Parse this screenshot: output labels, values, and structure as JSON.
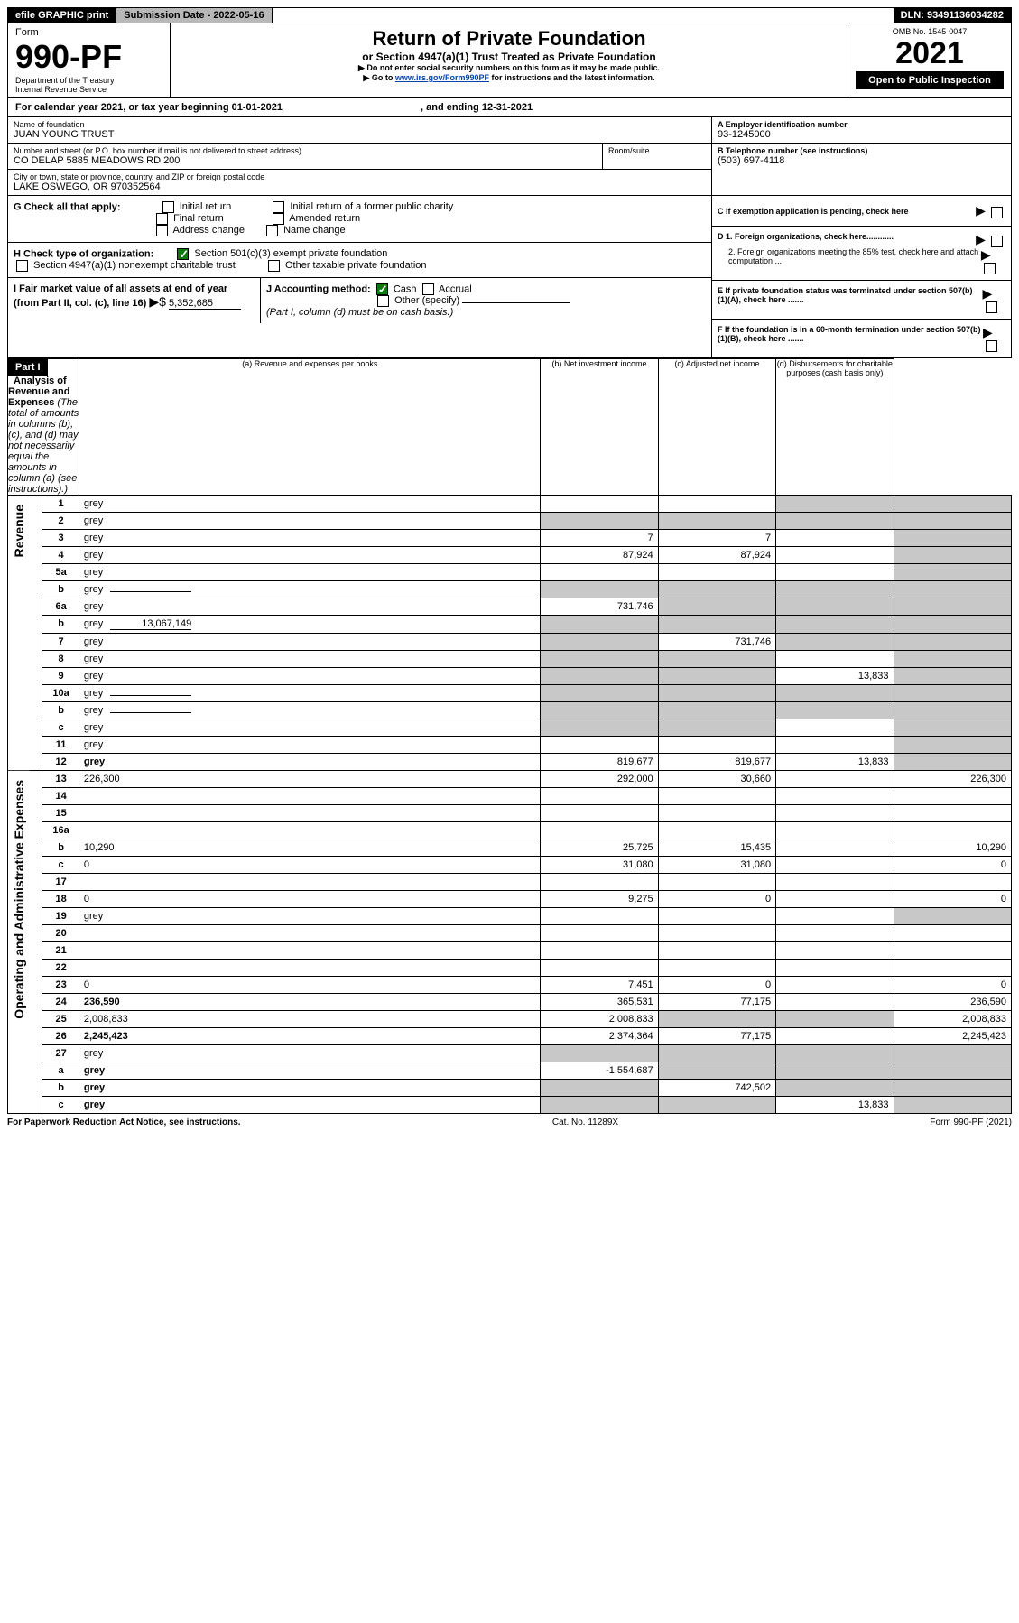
{
  "topbar": {
    "efile": "efile GRAPHIC print",
    "submission": "Submission Date - 2022-05-16",
    "dln": "DLN: 93491136034282"
  },
  "header": {
    "form_label": "Form",
    "form_num": "990-PF",
    "dept": "Department of the Treasury",
    "irs": "Internal Revenue Service",
    "title": "Return of Private Foundation",
    "subtitle": "or Section 4947(a)(1) Trust Treated as Private Foundation",
    "note1": "▶ Do not enter social security numbers on this form as it may be made public.",
    "note2_pre": "▶ Go to ",
    "note2_link": "www.irs.gov/Form990PF",
    "note2_post": " for instructions and the latest information.",
    "omb": "OMB No. 1545-0047",
    "year": "2021",
    "open": "Open to Public Inspection"
  },
  "calendar": {
    "text_pre": "For calendar year 2021, or tax year beginning ",
    "begin": "01-01-2021",
    "text_mid": " , and ending ",
    "end": "12-31-2021"
  },
  "name_block": {
    "name_label": "Name of foundation",
    "name": "JUAN YOUNG TRUST",
    "addr_label": "Number and street (or P.O. box number if mail is not delivered to street address)",
    "addr": "CO DELAP 5885 MEADOWS RD 200",
    "room_label": "Room/suite",
    "city_label": "City or town, state or province, country, and ZIP or foreign postal code",
    "city": "LAKE OSWEGO, OR  970352564"
  },
  "id_block": {
    "a_label": "A Employer identification number",
    "a_val": "93-1245000",
    "b_label": "B Telephone number (see instructions)",
    "b_val": "(503) 697-4118",
    "c_label": "C If exemption application is pending, check here",
    "d1": "D 1. Foreign organizations, check here............",
    "d2": "2. Foreign organizations meeting the 85% test, check here and attach computation ...",
    "e": "E  If private foundation status was terminated under section 507(b)(1)(A), check here .......",
    "f": "F  If the foundation is in a 60-month termination under section 507(b)(1)(B), check here .......",
    "arrow": "▶"
  },
  "g": {
    "label": "G Check all that apply:",
    "opts": [
      "Initial return",
      "Final return",
      "Address change",
      "Initial return of a former public charity",
      "Amended return",
      "Name change"
    ]
  },
  "h": {
    "label": "H Check type of organization:",
    "opt1": "Section 501(c)(3) exempt private foundation",
    "opt2": "Section 4947(a)(1) nonexempt charitable trust",
    "opt3": "Other taxable private foundation"
  },
  "i": {
    "label": "I Fair market value of all assets at end of year (from Part II, col. (c), line 16)",
    "arrow": "▶$",
    "val": "5,352,685"
  },
  "j": {
    "label": "J Accounting method:",
    "cash": "Cash",
    "accrual": "Accrual",
    "other": "Other (specify)",
    "note": "(Part I, column (d) must be on cash basis.)"
  },
  "part1": {
    "hdr": "Part I",
    "title": "Analysis of Revenue and Expenses",
    "title_note": " (The total of amounts in columns (b), (c), and (d) may not necessarily equal the amounts in column (a) (see instructions).)",
    "col_a": "(a)  Revenue and expenses per books",
    "col_b": "(b)  Net investment income",
    "col_c": "(c)  Adjusted net income",
    "col_d": "(d)  Disbursements for charitable purposes (cash basis only)"
  },
  "revenue_label": "Revenue",
  "expenses_label": "Operating and Administrative Expenses",
  "rows": [
    {
      "n": "1",
      "d": "grey",
      "a": "",
      "b": "",
      "c": "grey"
    },
    {
      "n": "2",
      "d": "grey",
      "a": "grey",
      "b": "grey",
      "c": "grey",
      "span": true
    },
    {
      "n": "3",
      "d": "grey",
      "a": "7",
      "b": "7",
      "c": ""
    },
    {
      "n": "4",
      "d": "grey",
      "a": "87,924",
      "b": "87,924",
      "c": ""
    },
    {
      "n": "5a",
      "d": "grey",
      "a": "",
      "b": "",
      "c": ""
    },
    {
      "n": "b",
      "d": "grey",
      "a": "grey",
      "b": "grey",
      "c": "grey",
      "inline": true
    },
    {
      "n": "6a",
      "d": "grey",
      "a": "731,746",
      "b": "grey",
      "c": "grey"
    },
    {
      "n": "b",
      "d": "grey",
      "a": "grey",
      "b": "grey",
      "c": "grey",
      "inline": true,
      "inlineval": "13,067,149"
    },
    {
      "n": "7",
      "d": "grey",
      "a": "grey",
      "b": "731,746",
      "c": "grey"
    },
    {
      "n": "8",
      "d": "grey",
      "a": "grey",
      "b": "grey",
      "c": ""
    },
    {
      "n": "9",
      "d": "grey",
      "a": "grey",
      "b": "grey",
      "c": "13,833"
    },
    {
      "n": "10a",
      "d": "grey",
      "a": "grey",
      "b": "grey",
      "c": "grey",
      "inline": true
    },
    {
      "n": "b",
      "d": "grey",
      "a": "grey",
      "b": "grey",
      "c": "grey",
      "inline": true
    },
    {
      "n": "c",
      "d": "grey",
      "a": "grey",
      "b": "grey",
      "c": ""
    },
    {
      "n": "11",
      "d": "grey",
      "a": "",
      "b": "",
      "c": ""
    },
    {
      "n": "12",
      "d": "grey",
      "a": "819,677",
      "b": "819,677",
      "c": "13,833",
      "bold": true
    }
  ],
  "exp_rows": [
    {
      "n": "13",
      "d": "226,300",
      "a": "292,000",
      "b": "30,660",
      "c": ""
    },
    {
      "n": "14",
      "d": "",
      "a": "",
      "b": "",
      "c": ""
    },
    {
      "n": "15",
      "d": "",
      "a": "",
      "b": "",
      "c": ""
    },
    {
      "n": "16a",
      "d": "",
      "a": "",
      "b": "",
      "c": ""
    },
    {
      "n": "b",
      "d": "10,290",
      "a": "25,725",
      "b": "15,435",
      "c": ""
    },
    {
      "n": "c",
      "d": "0",
      "a": "31,080",
      "b": "31,080",
      "c": ""
    },
    {
      "n": "17",
      "d": "",
      "a": "",
      "b": "",
      "c": ""
    },
    {
      "n": "18",
      "d": "0",
      "a": "9,275",
      "b": "0",
      "c": ""
    },
    {
      "n": "19",
      "d": "grey",
      "a": "",
      "b": "",
      "c": ""
    },
    {
      "n": "20",
      "d": "",
      "a": "",
      "b": "",
      "c": ""
    },
    {
      "n": "21",
      "d": "",
      "a": "",
      "b": "",
      "c": ""
    },
    {
      "n": "22",
      "d": "",
      "a": "",
      "b": "",
      "c": ""
    },
    {
      "n": "23",
      "d": "0",
      "a": "7,451",
      "b": "0",
      "c": ""
    },
    {
      "n": "24",
      "d": "236,590",
      "a": "365,531",
      "b": "77,175",
      "c": "",
      "bold": true
    },
    {
      "n": "25",
      "d": "2,008,833",
      "a": "2,008,833",
      "b": "grey",
      "c": "grey"
    },
    {
      "n": "26",
      "d": "2,245,423",
      "a": "2,374,364",
      "b": "77,175",
      "c": "",
      "bold": true
    },
    {
      "n": "27",
      "d": "grey",
      "a": "grey",
      "b": "grey",
      "c": "grey"
    },
    {
      "n": "a",
      "d": "grey",
      "a": "-1,554,687",
      "b": "grey",
      "c": "grey",
      "bold": true
    },
    {
      "n": "b",
      "d": "grey",
      "a": "grey",
      "b": "742,502",
      "c": "grey",
      "bold": true
    },
    {
      "n": "c",
      "d": "grey",
      "a": "grey",
      "b": "grey",
      "c": "13,833",
      "bold": true
    }
  ],
  "footer": {
    "left": "For Paperwork Reduction Act Notice, see instructions.",
    "mid": "Cat. No. 11289X",
    "right": "Form 990-PF (2021)"
  }
}
